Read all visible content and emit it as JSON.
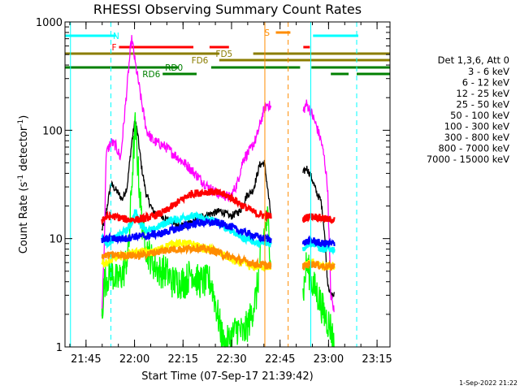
{
  "chart_data": {
    "type": "line",
    "title": "RHESSI Observing Summary Count Rates",
    "xlabel": "Start Time (07-Sep-17 21:39:42)",
    "ylabel_main": "Count Rate (s",
    "ylabel_sup1": "-1",
    "ylabel_mid": " detector",
    "ylabel_sup2": "-1",
    "ylabel_end": ")",
    "y_scale": "log",
    "ylim": [
      1,
      1000
    ],
    "y_ticks": [
      {
        "value": 1,
        "label": "1"
      },
      {
        "value": 10,
        "label": "10"
      },
      {
        "value": 100,
        "label": "100"
      },
      {
        "value": 1000,
        "label": "1000"
      }
    ],
    "xlim_min_since_start": [
      -1.2,
      99.3
    ],
    "x_ticks": [
      {
        "t": 5.3,
        "label": "21:45"
      },
      {
        "t": 20.3,
        "label": "22:00"
      },
      {
        "t": 35.3,
        "label": "22:15"
      },
      {
        "t": 50.3,
        "label": "22:30"
      },
      {
        "t": 65.3,
        "label": "22:45"
      },
      {
        "t": 80.3,
        "label": "23:00"
      },
      {
        "t": 95.3,
        "label": "23:15"
      }
    ],
    "legend_title": "Det 1,3,6, Att 0",
    "series": [
      {
        "name": "3 - 6 keV",
        "color": "#000000"
      },
      {
        "name": "6 - 12 keV",
        "color": "#ff00ff"
      },
      {
        "name": "12 - 25 keV",
        "color": "#00ff00"
      },
      {
        "name": "25 - 50 keV",
        "color": "#00ffff"
      },
      {
        "name": "50 - 100 keV",
        "color": "#ffff00"
      },
      {
        "name": "100 - 300 keV",
        "color": "#ff0000"
      },
      {
        "name": "300 - 800 keV",
        "color": "#0000ff"
      },
      {
        "name": "800 - 7000 keV",
        "color": "#ff8c00"
      },
      {
        "name": "7000 - 15000 keV",
        "color": "#8b7d00"
      }
    ],
    "flags": [
      {
        "label": "N",
        "color": "#00ffff",
        "segments": [
          [
            -1.2,
            14.5
          ],
          [
            75.5,
            89.5
          ]
        ]
      },
      {
        "label": "F",
        "color": "#ff0000",
        "segments": [
          [
            15.5,
            38.5
          ],
          [
            43.5,
            49.5
          ],
          [
            72.5,
            74.5
          ]
        ]
      },
      {
        "label": "S",
        "color": "#ff8c00",
        "segments": [
          [
            64.0,
            68.5
          ]
        ]
      },
      {
        "label": "FD5",
        "color": "#8b7d00",
        "segments": [
          [
            -1.2,
            46.5
          ],
          [
            57.0,
            99.3
          ]
        ]
      },
      {
        "label": "FD6",
        "color": "#8b7d00",
        "segments": [
          [
            46.5,
            99.3
          ]
        ]
      },
      {
        "label": "RD0",
        "color": "#008000",
        "segments": [
          [
            -1.2,
            34.0
          ],
          [
            44.0,
            71.5
          ],
          [
            75.0,
            99.3
          ]
        ]
      },
      {
        "label": "RD6",
        "color": "#008000",
        "segments": [
          [
            29.0,
            39.5
          ],
          [
            81.0,
            86.5
          ],
          [
            89.0,
            99.3
          ]
        ]
      }
    ],
    "markers": [
      {
        "t": 0.5,
        "color": "#00ffff",
        "style": "solid"
      },
      {
        "t": 13.0,
        "color": "#00ffff",
        "style": "dashed"
      },
      {
        "t": 60.6,
        "color": "#ff8c00",
        "style": "solid"
      },
      {
        "t": 67.8,
        "color": "#ff8c00",
        "style": "dashed"
      },
      {
        "t": 74.8,
        "color": "#00ffff",
        "style": "solid"
      },
      {
        "t": 89.0,
        "color": "#00ffff",
        "style": "dashed"
      }
    ],
    "data_gaps_min": [
      [
        -1.2,
        10.2
      ],
      [
        62.6,
        72.4
      ],
      [
        82.2,
        99.3
      ]
    ],
    "curves": {
      "3 - 6 keV": [
        [
          10.2,
          12
        ],
        [
          11,
          14
        ],
        [
          13,
          32
        ],
        [
          15,
          27
        ],
        [
          16.5,
          23
        ],
        [
          18,
          30
        ],
        [
          19.5,
          80
        ],
        [
          20.5,
          125
        ],
        [
          21.3,
          90
        ],
        [
          22.5,
          45
        ],
        [
          24,
          25
        ],
        [
          26,
          18
        ],
        [
          29,
          16
        ],
        [
          32,
          14
        ],
        [
          35,
          13
        ],
        [
          38,
          14
        ],
        [
          41,
          16
        ],
        [
          44,
          17
        ],
        [
          47,
          18
        ],
        [
          50,
          16
        ],
        [
          53,
          18
        ],
        [
          55,
          25
        ],
        [
          57,
          28
        ],
        [
          59,
          48
        ],
        [
          60.5,
          50
        ],
        [
          62.6,
          15
        ],
        [
          72.4,
          40
        ],
        [
          73.5,
          45
        ],
        [
          75,
          37
        ],
        [
          76.5,
          27
        ],
        [
          78,
          22
        ],
        [
          79,
          12
        ],
        [
          80,
          4
        ],
        [
          81,
          3
        ],
        [
          82.2,
          3
        ]
      ],
      "6 - 12 keV": [
        [
          10.2,
          2
        ],
        [
          11,
          10
        ],
        [
          11.5,
          60
        ],
        [
          13,
          78
        ],
        [
          14.5,
          72
        ],
        [
          16,
          55
        ],
        [
          18,
          250
        ],
        [
          19,
          550
        ],
        [
          19.5,
          700
        ],
        [
          20.5,
          420
        ],
        [
          21.5,
          280
        ],
        [
          22.5,
          180
        ],
        [
          24,
          100
        ],
        [
          26,
          80
        ],
        [
          28,
          75
        ],
        [
          30,
          70
        ],
        [
          32,
          62
        ],
        [
          34,
          55
        ],
        [
          37,
          46
        ],
        [
          40,
          37
        ],
        [
          43,
          30
        ],
        [
          46,
          26
        ],
        [
          48,
          25
        ],
        [
          50,
          24
        ],
        [
          52,
          32
        ],
        [
          54,
          55
        ],
        [
          56,
          65
        ],
        [
          58,
          85
        ],
        [
          59.5,
          125
        ],
        [
          60.5,
          160
        ],
        [
          61.5,
          175
        ],
        [
          62.6,
          160
        ],
        [
          72.4,
          150
        ],
        [
          73.5,
          175
        ],
        [
          75,
          145
        ],
        [
          76.5,
          110
        ],
        [
          78,
          80
        ],
        [
          79,
          55
        ],
        [
          80,
          30
        ],
        [
          81,
          3
        ],
        [
          82.2,
          2
        ]
      ],
      "12 - 25 keV": [
        [
          10.2,
          2
        ],
        [
          11,
          4
        ],
        [
          13,
          5
        ],
        [
          15,
          4
        ],
        [
          17,
          5
        ],
        [
          18.5,
          8
        ],
        [
          19.5,
          35
        ],
        [
          20.5,
          110
        ],
        [
          21.5,
          40
        ],
        [
          22.5,
          15
        ],
        [
          24,
          8
        ],
        [
          26,
          6
        ],
        [
          28,
          5
        ],
        [
          30,
          5
        ],
        [
          32,
          4
        ],
        [
          34,
          4
        ],
        [
          36,
          4
        ],
        [
          38,
          5
        ],
        [
          40,
          4
        ],
        [
          42,
          4
        ],
        [
          44,
          4
        ],
        [
          46,
          2
        ],
        [
          48,
          1
        ],
        [
          50,
          1.2
        ],
        [
          52,
          1.5
        ],
        [
          54,
          1.3
        ],
        [
          56,
          1.8
        ],
        [
          58,
          3
        ],
        [
          59.5,
          8
        ],
        [
          60.5,
          12
        ],
        [
          61.5,
          15
        ],
        [
          62.6,
          6
        ],
        [
          72.4,
          3
        ],
        [
          73.5,
          6
        ],
        [
          75,
          4
        ],
        [
          77,
          3
        ],
        [
          79,
          2
        ],
        [
          81,
          1.5
        ],
        [
          82.2,
          1
        ]
      ],
      "25 - 50 keV": [
        [
          10.2,
          10
        ],
        [
          12,
          9
        ],
        [
          14,
          10
        ],
        [
          16,
          11
        ],
        [
          18,
          12
        ],
        [
          19.5,
          14
        ],
        [
          20.5,
          18
        ],
        [
          22,
          14
        ],
        [
          24,
          12
        ],
        [
          26,
          12
        ],
        [
          28,
          13
        ],
        [
          30,
          14
        ],
        [
          32,
          15
        ],
        [
          34,
          15
        ],
        [
          36,
          16
        ],
        [
          38,
          16
        ],
        [
          40,
          16
        ],
        [
          42,
          15
        ],
        [
          44,
          15
        ],
        [
          46,
          14
        ],
        [
          48,
          13
        ],
        [
          50,
          12
        ],
        [
          52,
          11
        ],
        [
          54,
          10
        ],
        [
          56,
          10
        ],
        [
          58,
          9
        ],
        [
          60,
          9
        ],
        [
          62.6,
          9
        ],
        [
          72.4,
          8
        ],
        [
          74,
          9
        ],
        [
          76,
          9
        ],
        [
          78,
          8
        ],
        [
          80,
          8
        ],
        [
          82.2,
          8
        ]
      ],
      "50 - 100 keV": [
        [
          10.2,
          6
        ],
        [
          12,
          6
        ],
        [
          14,
          6.5
        ],
        [
          16,
          7
        ],
        [
          18,
          7
        ],
        [
          20,
          7.5
        ],
        [
          22,
          7.5
        ],
        [
          24,
          7.5
        ],
        [
          26,
          7.5
        ],
        [
          28,
          8
        ],
        [
          30,
          8.5
        ],
        [
          32,
          9
        ],
        [
          34,
          9
        ],
        [
          36,
          9
        ],
        [
          38,
          9
        ],
        [
          40,
          8.5
        ],
        [
          42,
          8
        ],
        [
          44,
          8
        ],
        [
          46,
          7.5
        ],
        [
          48,
          7
        ],
        [
          50,
          6.5
        ],
        [
          52,
          6
        ],
        [
          54,
          6
        ],
        [
          56,
          5.5
        ],
        [
          58,
          5.5
        ],
        [
          60,
          5.5
        ],
        [
          62.6,
          5.5
        ],
        [
          72.4,
          5.5
        ],
        [
          74,
          6
        ],
        [
          76,
          6
        ],
        [
          78,
          5.5
        ],
        [
          80,
          5.5
        ],
        [
          82.2,
          5.5
        ]
      ],
      "100 - 300 keV": [
        [
          10.2,
          15
        ],
        [
          12,
          16
        ],
        [
          14,
          16
        ],
        [
          16,
          15.5
        ],
        [
          18,
          15
        ],
        [
          20,
          15
        ],
        [
          22,
          15
        ],
        [
          24,
          15.5
        ],
        [
          26,
          16
        ],
        [
          28,
          17
        ],
        [
          30,
          18
        ],
        [
          32,
          20
        ],
        [
          34,
          22
        ],
        [
          36,
          24
        ],
        [
          38,
          26
        ],
        [
          40,
          26.5
        ],
        [
          42,
          27
        ],
        [
          44,
          27
        ],
        [
          46,
          26.5
        ],
        [
          48,
          25.5
        ],
        [
          50,
          24
        ],
        [
          52,
          22
        ],
        [
          54,
          20
        ],
        [
          56,
          18.5
        ],
        [
          58,
          17
        ],
        [
          60,
          16.5
        ],
        [
          62.6,
          16
        ],
        [
          72.4,
          15
        ],
        [
          74,
          16
        ],
        [
          76,
          16
        ],
        [
          78,
          15.5
        ],
        [
          80,
          15
        ],
        [
          82.2,
          15
        ]
      ],
      "300 - 800 keV": [
        [
          10.2,
          9.5
        ],
        [
          12,
          10
        ],
        [
          14,
          10
        ],
        [
          16,
          10
        ],
        [
          18,
          10
        ],
        [
          20,
          10.5
        ],
        [
          22,
          10.5
        ],
        [
          24,
          10.5
        ],
        [
          26,
          11
        ],
        [
          28,
          11
        ],
        [
          30,
          11.5
        ],
        [
          32,
          12
        ],
        [
          34,
          12.5
        ],
        [
          36,
          13
        ],
        [
          38,
          13.5
        ],
        [
          40,
          14
        ],
        [
          42,
          14
        ],
        [
          44,
          14
        ],
        [
          46,
          14
        ],
        [
          48,
          13.5
        ],
        [
          50,
          13
        ],
        [
          52,
          12
        ],
        [
          54,
          11.5
        ],
        [
          56,
          11
        ],
        [
          58,
          10.5
        ],
        [
          60,
          10
        ],
        [
          62.6,
          10
        ],
        [
          72.4,
          9
        ],
        [
          74,
          9.5
        ],
        [
          76,
          9.5
        ],
        [
          78,
          9
        ],
        [
          80,
          9
        ],
        [
          82.2,
          9
        ]
      ],
      "800 - 7000 keV": [
        [
          10.2,
          7
        ],
        [
          12,
          7
        ],
        [
          14,
          7
        ],
        [
          16,
          7
        ],
        [
          18,
          7
        ],
        [
          20,
          7
        ],
        [
          22,
          7
        ],
        [
          24,
          7.2
        ],
        [
          26,
          7.4
        ],
        [
          28,
          7.6
        ],
        [
          30,
          7.8
        ],
        [
          32,
          8
        ],
        [
          34,
          8
        ],
        [
          36,
          8
        ],
        [
          38,
          8.2
        ],
        [
          40,
          8.2
        ],
        [
          42,
          8
        ],
        [
          44,
          7.8
        ],
        [
          46,
          7.5
        ],
        [
          48,
          7
        ],
        [
          50,
          6.8
        ],
        [
          52,
          6.5
        ],
        [
          54,
          6.2
        ],
        [
          56,
          6
        ],
        [
          58,
          5.8
        ],
        [
          60,
          5.7
        ],
        [
          62.6,
          5.6
        ],
        [
          72.4,
          5.5
        ],
        [
          74,
          5.8
        ],
        [
          76,
          5.8
        ],
        [
          78,
          5.6
        ],
        [
          80,
          5.5
        ],
        [
          82.2,
          5.5
        ]
      ],
      "7000 - 15000 keV": []
    }
  },
  "footer": {
    "timestamp": "1-Sep-2022 21:22"
  }
}
